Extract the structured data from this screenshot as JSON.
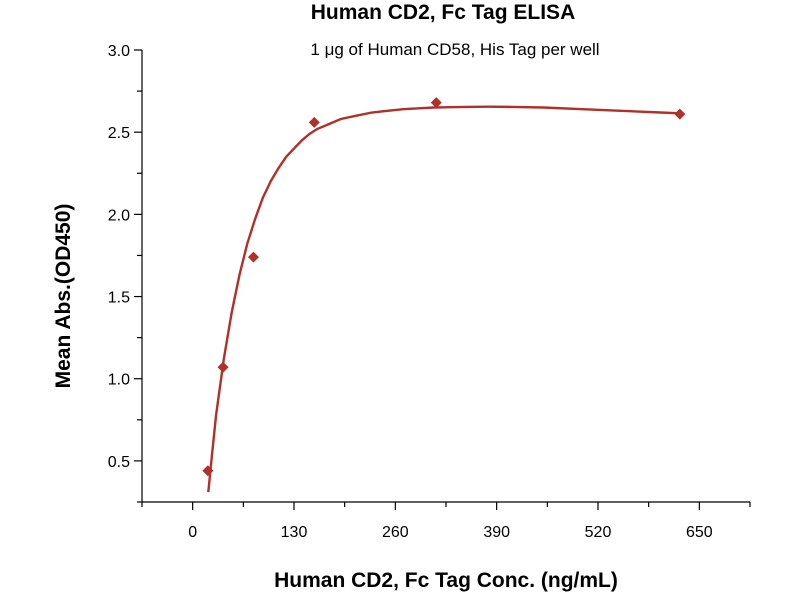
{
  "chart_data": {
    "type": "scatter",
    "title": "Human CD2, Fc Tag ELISA",
    "subtitle": "1 μg of Human CD58, His Tag per well",
    "xlabel": "Human CD2, Fc Tag Conc. (ng/mL)",
    "ylabel": "Mean Abs.(OD450)",
    "xlim": [
      -65,
      715
    ],
    "ylim": [
      0.25,
      3.0
    ],
    "x_ticks": [
      0,
      130,
      260,
      390,
      520,
      650
    ],
    "y_ticks": [
      0.5,
      1.0,
      1.5,
      2.0,
      2.5,
      3.0
    ],
    "x_tick_labels": [
      "0",
      "130",
      "260",
      "390",
      "520",
      "650"
    ],
    "y_tick_labels": [
      "0.5",
      "1.0",
      "1.5",
      "2.0",
      "2.5",
      "3.0"
    ],
    "grid": false,
    "legend": "none",
    "series": [
      {
        "marker": "diamond",
        "color": "#b0302a",
        "x": [
          19.5,
          39,
          78,
          156,
          312.5,
          625
        ],
        "y": [
          0.44,
          1.07,
          1.74,
          2.56,
          2.68,
          2.61
        ]
      }
    ],
    "fit_curve": {
      "color": "#b0302a",
      "x": [
        20,
        25,
        30,
        40,
        50,
        60,
        70,
        80,
        90,
        100,
        110,
        120,
        130,
        140,
        150,
        160,
        175,
        190,
        210,
        230,
        250,
        270,
        290,
        310,
        330,
        350,
        380,
        410,
        450,
        500,
        550,
        600,
        625
      ],
      "y": [
        0.31,
        0.55,
        0.78,
        1.12,
        1.4,
        1.63,
        1.82,
        1.97,
        2.1,
        2.2,
        2.28,
        2.35,
        2.4,
        2.45,
        2.49,
        2.52,
        2.55,
        2.58,
        2.6,
        2.62,
        2.63,
        2.64,
        2.645,
        2.65,
        2.652,
        2.654,
        2.655,
        2.654,
        2.65,
        2.64,
        2.63,
        2.62,
        2.615
      ]
    }
  }
}
